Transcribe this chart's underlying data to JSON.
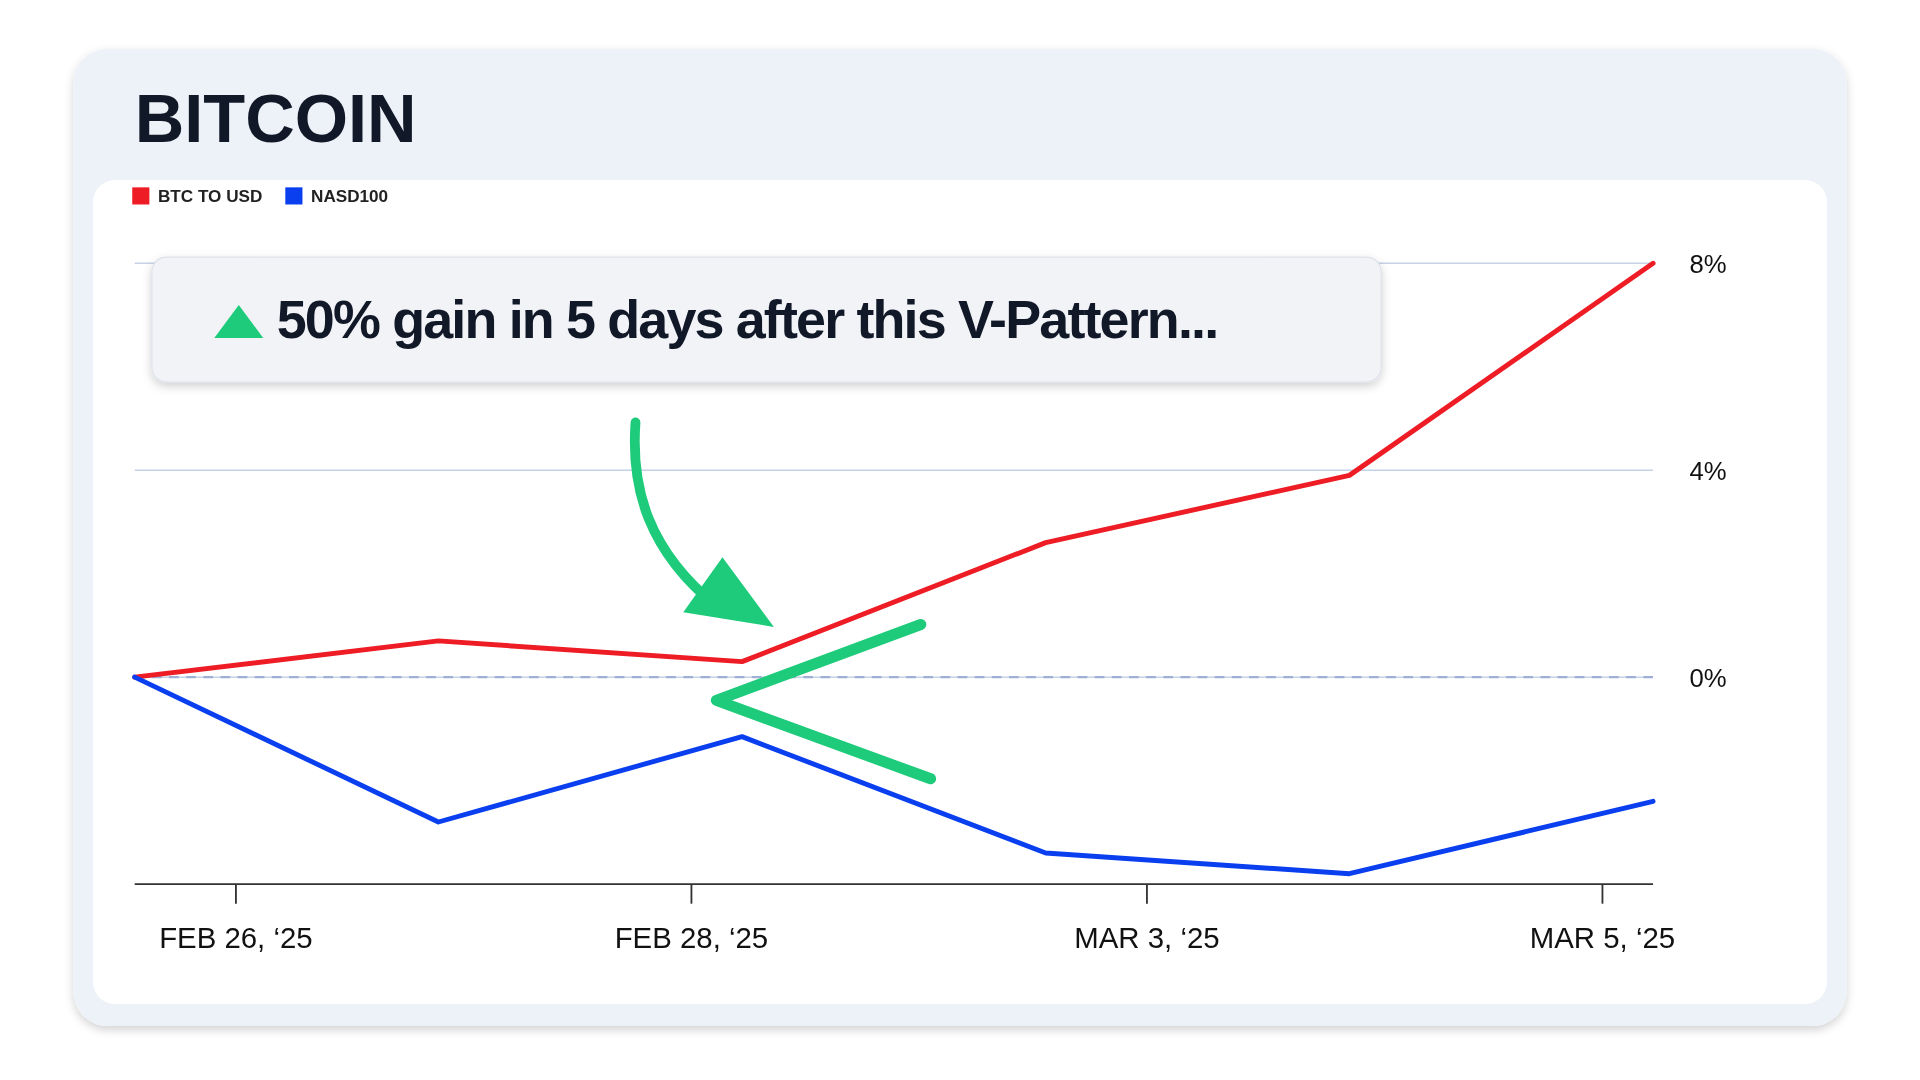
{
  "chart_data": {
    "type": "line",
    "title": "BITCOIN",
    "annotations": [
      "50% gain in 5 days after this V-Pattern..."
    ],
    "categories": [
      null,
      null,
      "FEB 26, ‘25",
      null,
      null,
      null,
      null,
      null,
      null,
      null,
      null,
      "FEB 28, ‘25",
      null,
      null,
      null,
      null,
      null,
      null,
      null,
      null,
      "MAR 3, ‘25",
      null,
      null,
      null,
      null,
      null,
      null,
      null,
      null,
      "MAR 5, ‘25",
      null
    ],
    "ylim": [
      -4,
      8
    ],
    "yticks": [
      {
        "value": 0,
        "label": "0%"
      },
      {
        "value": 4,
        "label": "4%"
      },
      {
        "value": 8,
        "label": "8%"
      }
    ],
    "grid": "y",
    "legend": "top left",
    "marker": "none",
    "line_style": "solid",
    "ref_lines": [
      {
        "axis": "y",
        "value": 0,
        "color": "#9fb0d6",
        "line_style": "dashed"
      }
    ],
    "series": [
      {
        "name": "BTC TO USD",
        "color": "#ee1c25",
        "values": [
          0,
          null,
          null,
          null,
          null,
          null,
          0.7,
          null,
          null,
          null,
          null,
          null,
          0.3,
          null,
          null,
          null,
          null,
          null,
          2.6,
          null,
          null,
          null,
          null,
          null,
          3.9,
          null,
          null,
          null,
          null,
          null,
          8
        ]
      },
      {
        "name": "NASD100",
        "color": "#0a3ff0",
        "values": [
          0,
          null,
          null,
          null,
          null,
          null,
          -2.8,
          null,
          null,
          null,
          null,
          null,
          -1.15,
          null,
          null,
          null,
          null,
          null,
          -3.4,
          null,
          null,
          null,
          null,
          null,
          -3.8,
          null,
          null,
          null,
          null,
          null,
          -2.4
        ]
      }
    ]
  }
}
